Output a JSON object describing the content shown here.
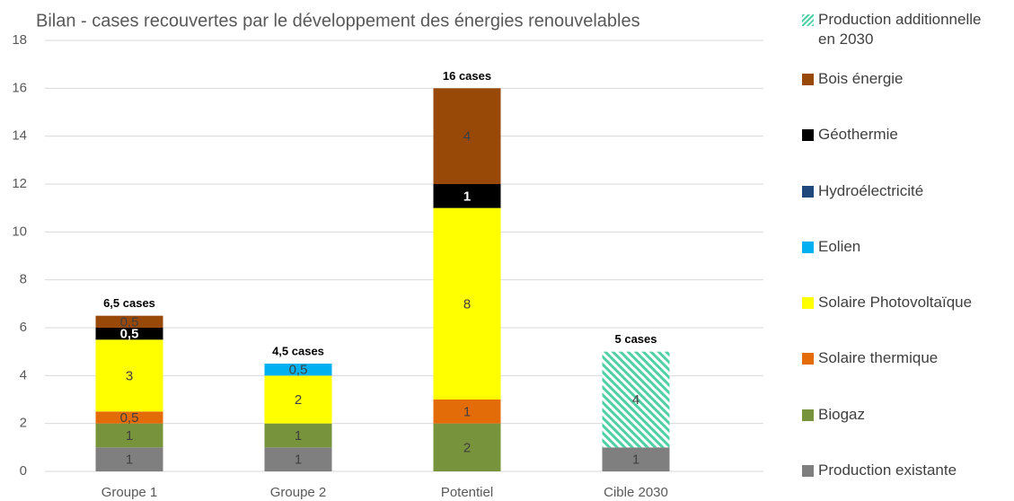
{
  "chart_data": {
    "type": "stacked_bar",
    "title": "Bilan - cases recouvertes par le développement des énergies renouvelables",
    "categories": [
      "Groupe 1",
      "Groupe 2",
      "Potentiel",
      "Cible 2030"
    ],
    "totals": [
      "6,5 cases",
      "4,5 cases",
      "16 cases",
      "5 cases"
    ],
    "ylim": [
      0,
      18
    ],
    "yticks": [
      0,
      2,
      4,
      6,
      8,
      10,
      12,
      14,
      16,
      18
    ],
    "grid": true,
    "legend": "right",
    "series": [
      {
        "name": "Production existante",
        "color": "#7f7f7f",
        "values": [
          1,
          1,
          null,
          1
        ]
      },
      {
        "name": "Biogaz",
        "color": "#77933c",
        "values": [
          1,
          1,
          2,
          null
        ]
      },
      {
        "name": "Solaire thermique",
        "color": "#e36c09",
        "values": [
          0.5,
          null,
          1,
          null
        ],
        "value_labels": [
          "0,5",
          null,
          "1",
          null
        ]
      },
      {
        "name": "Solaire Photovoltaïque",
        "color": "#ffff00",
        "values": [
          3,
          2,
          8,
          null
        ]
      },
      {
        "name": "Eolien",
        "color": "#00b0f0",
        "values": [
          null,
          0.5,
          null,
          null
        ],
        "value_labels": [
          null,
          "0,5",
          null,
          null
        ]
      },
      {
        "name": "Hydroélectricité",
        "color": "#1f497d",
        "values": [
          null,
          null,
          null,
          null
        ]
      },
      {
        "name": "Géothermie",
        "color": "#000000",
        "values": [
          0.5,
          null,
          1,
          null
        ],
        "value_labels": [
          "0,5",
          null,
          "1",
          null
        ]
      },
      {
        "name": "Bois énergie",
        "color": "#984807",
        "values": [
          0.5,
          null,
          4,
          null
        ],
        "value_labels": [
          "0,5",
          null,
          "4",
          null
        ]
      },
      {
        "name": "Production additionnelle en 2030",
        "color": "#4fd1a5",
        "hatch": true,
        "values": [
          null,
          null,
          null,
          4
        ]
      }
    ]
  }
}
